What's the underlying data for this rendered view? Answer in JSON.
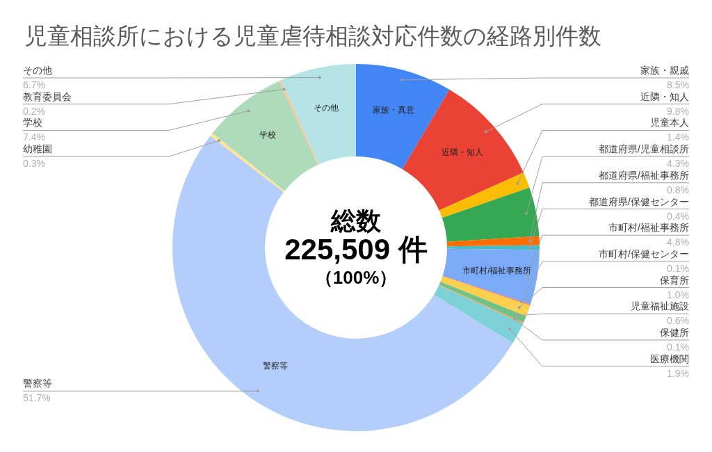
{
  "chart_data": {
    "type": "donut",
    "title": "児童相談所における児童虐待相談対応件数の経路別件数",
    "categories": [
      "家族・親戚",
      "近隣・知人",
      "児童本人",
      "都道府県/児童相談所",
      "都道府県/福祉事務所",
      "都道府県/保健センター",
      "市町村/福祉事務所",
      "市町村/保健センター",
      "保育所",
      "児童福祉施設",
      "保健所",
      "医療機関",
      "警察等",
      "幼稚園",
      "学校",
      "教育委員会",
      "その他"
    ],
    "values": [
      8.5,
      9.8,
      1.4,
      4.3,
      0.8,
      0.4,
      4.8,
      0.1,
      1.0,
      0.6,
      0.1,
      1.9,
      51.7,
      0.3,
      7.4,
      0.2,
      6.7
    ],
    "colors": [
      "#4285f4",
      "#ea4335",
      "#fbbc04",
      "#34a853",
      "#ff6d01",
      "#46bdc6",
      "#7baaf7",
      "#f07b72",
      "#fcd04f",
      "#71c287",
      "#ff994d",
      "#7ed1d7",
      "#b3cefb",
      "#fde49b",
      "#aedcba",
      "#ffc599",
      "#b5e3e6"
    ],
    "value_labels": [
      "8.5%",
      "9.8%",
      "1.4%",
      "4.3%",
      "0.8%",
      "0.4%",
      "4.8%",
      "0.1%",
      "1.0%",
      "0.6%",
      "0.1%",
      "1.9%",
      "51.7%",
      "0.3%",
      "7.4%",
      "0.2%",
      "6.7%"
    ],
    "annotations": [
      "総数",
      "225,509 件",
      "（100%）",
      {
        "text": "家族・真意",
        "x": "家族・親戚"
      },
      {
        "text": "近隣・知人",
        "x": "近隣・知人"
      },
      {
        "text": "市町村/福祉事務所",
        "x": "市町村/福祉事務所"
      },
      {
        "text": "警察等",
        "x": "警察等"
      },
      {
        "text": "学校",
        "x": "学校"
      },
      {
        "text": "その他",
        "x": "その他"
      }
    ]
  }
}
